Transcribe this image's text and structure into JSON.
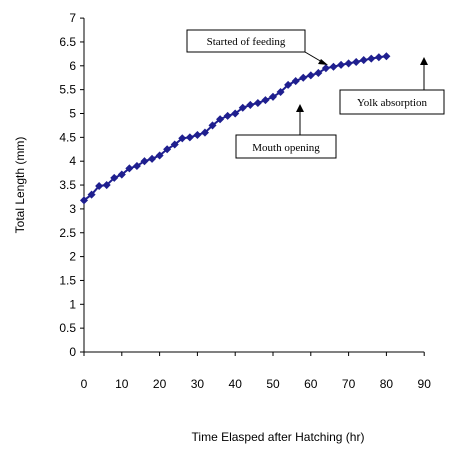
{
  "chart_data": {
    "type": "line",
    "xlabel": "Time Elasped after Hatching (hr)",
    "ylabel": "Total Length (mm)",
    "xlim": [
      0,
      90
    ],
    "ylim": [
      0,
      7
    ],
    "xticks": [
      "0",
      "10",
      "20",
      "30",
      "40",
      "50",
      "60",
      "70",
      "80",
      "90"
    ],
    "yticks": [
      "0",
      "0.5",
      "1",
      "1.5",
      "2",
      "2.5",
      "3",
      "3.5",
      "4",
      "4.5",
      "5",
      "5.5",
      "6",
      "6.5",
      "7"
    ],
    "grid": false,
    "colors": {
      "series": "#1f1f8f"
    },
    "series": [
      {
        "x": [
          0,
          2,
          4,
          6,
          8,
          10,
          12,
          14,
          16,
          18,
          20,
          22,
          24,
          26,
          28,
          30,
          32,
          34,
          36,
          38,
          40,
          42,
          44,
          46,
          48,
          50,
          52,
          54,
          56,
          58,
          60,
          62,
          64,
          66,
          68,
          70,
          72,
          74,
          76,
          78,
          80
        ],
        "y": [
          3.18,
          3.3,
          3.48,
          3.5,
          3.65,
          3.72,
          3.85,
          3.9,
          4.0,
          4.05,
          4.12,
          4.25,
          4.35,
          4.48,
          4.5,
          4.55,
          4.6,
          4.75,
          4.88,
          4.95,
          5.0,
          5.12,
          5.18,
          5.22,
          5.28,
          5.35,
          5.45,
          5.6,
          5.68,
          5.75,
          5.8,
          5.85,
          5.95,
          5.98,
          6.02,
          6.05,
          6.08,
          6.12,
          6.15,
          6.18,
          6.2
        ]
      }
    ],
    "annotations": [
      {
        "text": "Started of feeding",
        "x": 57,
        "y": 6.1
      },
      {
        "text": "Mouth opening",
        "x": 51,
        "y": 5.2
      },
      {
        "text": "Yolk absorption",
        "x": 80,
        "y": 6.2
      }
    ]
  }
}
